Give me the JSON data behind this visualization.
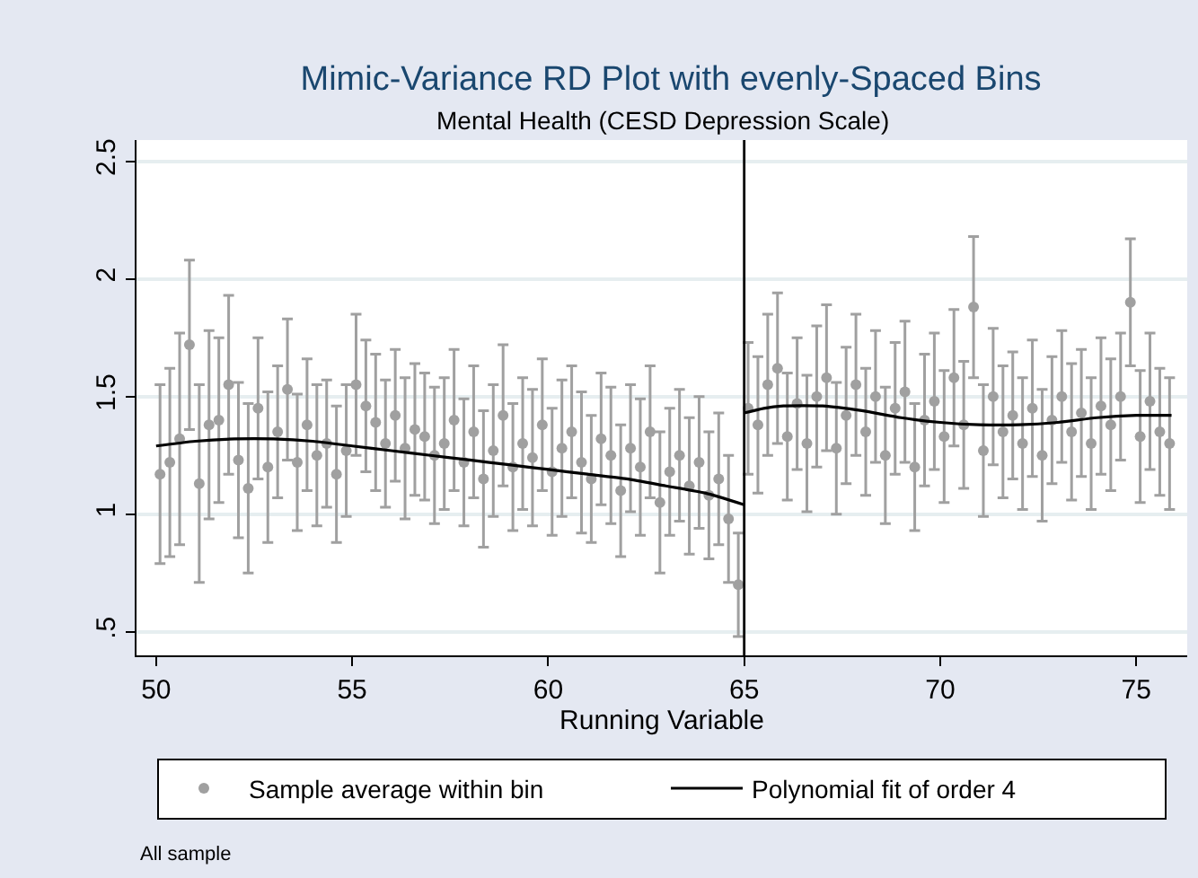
{
  "chart_data": {
    "type": "scatter",
    "title": "Mimic-Variance RD Plot with evenly-Spaced Bins",
    "subtitle": "Mental Health (CESD Depression Scale)",
    "xlabel": "Running Variable",
    "annotations": [
      "All sample"
    ],
    "xlim": [
      49.5,
      76.3
    ],
    "ylim": [
      0.4,
      2.59
    ],
    "xticks": [
      50,
      55,
      60,
      65,
      70,
      75
    ],
    "yticks": [
      {
        "value": 0.5,
        "label": ".5"
      },
      1,
      1.5,
      2,
      2.5
    ],
    "grid": "y",
    "legend": "bottom",
    "marker": "circle",
    "ref_lines": [
      {
        "axis": "x",
        "value": 65,
        "color": "#000000"
      }
    ],
    "series": [
      {
        "name": "Sample average within bin",
        "color": "#a0a0a0",
        "x": [
          50.1,
          50.35,
          50.6,
          50.85,
          51.1,
          51.35,
          51.6,
          51.85,
          52.1,
          52.35,
          52.6,
          52.85,
          53.1,
          53.35,
          53.6,
          53.85,
          54.1,
          54.35,
          54.6,
          54.85,
          55.1,
          55.35,
          55.6,
          55.85,
          56.1,
          56.35,
          56.6,
          56.85,
          57.1,
          57.35,
          57.6,
          57.85,
          58.1,
          58.35,
          58.6,
          58.85,
          59.1,
          59.35,
          59.6,
          59.85,
          60.1,
          60.35,
          60.6,
          60.85,
          61.1,
          61.35,
          61.6,
          61.85,
          62.1,
          62.35,
          62.6,
          62.85,
          63.1,
          63.35,
          63.6,
          63.85,
          64.1,
          64.35,
          64.6,
          64.85,
          65.1,
          65.35,
          65.6,
          65.85,
          66.1,
          66.35,
          66.6,
          66.85,
          67.1,
          67.35,
          67.6,
          67.85,
          68.1,
          68.35,
          68.6,
          68.85,
          69.1,
          69.35,
          69.6,
          69.85,
          70.1,
          70.35,
          70.6,
          70.85,
          71.1,
          71.35,
          71.6,
          71.85,
          72.1,
          72.35,
          72.6,
          72.85,
          73.1,
          73.35,
          73.6,
          73.85,
          74.1,
          74.35,
          74.6,
          74.85,
          75.1,
          75.35,
          75.6,
          75.85
        ],
        "values": [
          1.17,
          1.22,
          1.32,
          1.72,
          1.13,
          1.38,
          1.4,
          1.55,
          1.23,
          1.11,
          1.45,
          1.2,
          1.35,
          1.53,
          1.22,
          1.38,
          1.25,
          1.3,
          1.17,
          1.27,
          1.55,
          1.46,
          1.39,
          1.3,
          1.42,
          1.28,
          1.36,
          1.33,
          1.25,
          1.3,
          1.4,
          1.22,
          1.35,
          1.15,
          1.27,
          1.42,
          1.2,
          1.3,
          1.24,
          1.38,
          1.18,
          1.28,
          1.35,
          1.22,
          1.15,
          1.32,
          1.25,
          1.1,
          1.28,
          1.2,
          1.35,
          1.05,
          1.18,
          1.25,
          1.12,
          1.22,
          1.08,
          1.15,
          0.98,
          0.7,
          1.45,
          1.38,
          1.55,
          1.62,
          1.33,
          1.47,
          1.3,
          1.5,
          1.58,
          1.28,
          1.42,
          1.55,
          1.35,
          1.5,
          1.25,
          1.45,
          1.52,
          1.2,
          1.4,
          1.48,
          1.33,
          1.58,
          1.38,
          1.88,
          1.27,
          1.5,
          1.35,
          1.42,
          1.3,
          1.45,
          1.25,
          1.4,
          1.5,
          1.35,
          1.43,
          1.3,
          1.46,
          1.38,
          1.5,
          1.9,
          1.33,
          1.48,
          1.35,
          1.3
        ],
        "errors": [
          0.38,
          0.4,
          0.45,
          0.36,
          0.42,
          0.4,
          0.35,
          0.38,
          0.33,
          0.36,
          0.3,
          0.32,
          0.28,
          0.3,
          0.29,
          0.28,
          0.3,
          0.27,
          0.29,
          0.28,
          0.3,
          0.28,
          0.29,
          0.27,
          0.28,
          0.3,
          0.28,
          0.27,
          0.29,
          0.28,
          0.3,
          0.27,
          0.28,
          0.29,
          0.28,
          0.3,
          0.27,
          0.28,
          0.29,
          0.28,
          0.27,
          0.29,
          0.28,
          0.3,
          0.27,
          0.28,
          0.29,
          0.28,
          0.27,
          0.29,
          0.28,
          0.3,
          0.27,
          0.28,
          0.29,
          0.28,
          0.27,
          0.28,
          0.27,
          0.22,
          0.28,
          0.29,
          0.3,
          0.32,
          0.27,
          0.28,
          0.29,
          0.3,
          0.31,
          0.28,
          0.29,
          0.3,
          0.27,
          0.28,
          0.29,
          0.28,
          0.3,
          0.27,
          0.28,
          0.29,
          0.28,
          0.29,
          0.27,
          0.3,
          0.28,
          0.29,
          0.28,
          0.27,
          0.28,
          0.29,
          0.28,
          0.27,
          0.28,
          0.29,
          0.27,
          0.28,
          0.29,
          0.28,
          0.27,
          0.27,
          0.28,
          0.29,
          0.27,
          0.28
        ]
      },
      {
        "name": "Polynomial fit of order 4",
        "type": "line",
        "color": "#000000",
        "marker": "none",
        "line_style": "solid",
        "x": [
          50,
          51,
          52,
          53,
          54,
          55,
          56,
          57,
          58,
          59,
          60,
          61,
          62,
          63,
          64,
          65
        ],
        "values": [
          1.29,
          1.31,
          1.32,
          1.32,
          1.31,
          1.29,
          1.27,
          1.25,
          1.23,
          1.21,
          1.19,
          1.17,
          1.15,
          1.12,
          1.09,
          1.04
        ]
      },
      {
        "type": "line",
        "color": "#000000",
        "marker": "none",
        "line_style": "solid",
        "x": [
          65,
          65.5,
          66,
          67,
          68,
          69,
          70,
          71,
          72,
          73,
          74,
          75,
          75.9
        ],
        "values": [
          1.43,
          1.45,
          1.46,
          1.46,
          1.44,
          1.41,
          1.39,
          1.38,
          1.38,
          1.39,
          1.41,
          1.42,
          1.42
        ]
      }
    ]
  }
}
